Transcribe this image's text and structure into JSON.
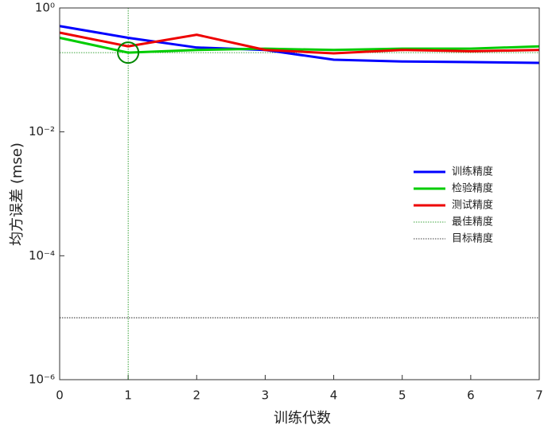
{
  "chart_data": {
    "type": "line",
    "xlabel": "训练代数",
    "ylabel": "均方误差 (mse)",
    "x": [
      0,
      1,
      2,
      3,
      4,
      5,
      6,
      7
    ],
    "series": [
      {
        "name": "训练精度",
        "color": "#0000ff",
        "values": [
          0.51,
          0.33,
          0.23,
          0.21,
          0.146,
          0.137,
          0.134,
          0.13
        ]
      },
      {
        "name": "检验精度",
        "color": "#00cc00",
        "values": [
          0.33,
          0.19,
          0.21,
          0.22,
          0.21,
          0.22,
          0.22,
          0.24
        ]
      },
      {
        "name": "测试精度",
        "color": "#ee0000",
        "values": [
          0.4,
          0.24,
          0.37,
          0.21,
          0.185,
          0.21,
          0.2,
          0.21
        ]
      }
    ],
    "best": {
      "name": "最佳精度",
      "color": "#008800",
      "x": 1,
      "y": 0.19
    },
    "goal": {
      "name": "目标精度",
      "color": "#000000",
      "y": 1e-05
    },
    "xlim": [
      0,
      7
    ],
    "xticks": [
      0,
      1,
      2,
      3,
      4,
      5,
      6,
      7
    ],
    "ylim": [
      1e-06,
      1
    ],
    "log_y": true,
    "yticks": [
      {
        "value": 1e-06,
        "label": "10⁻⁶"
      },
      {
        "value": 0.0001,
        "label": "10⁻⁴"
      },
      {
        "value": 0.01,
        "label": "10⁻²"
      },
      {
        "value": 1,
        "label": "10⁰"
      }
    ]
  }
}
